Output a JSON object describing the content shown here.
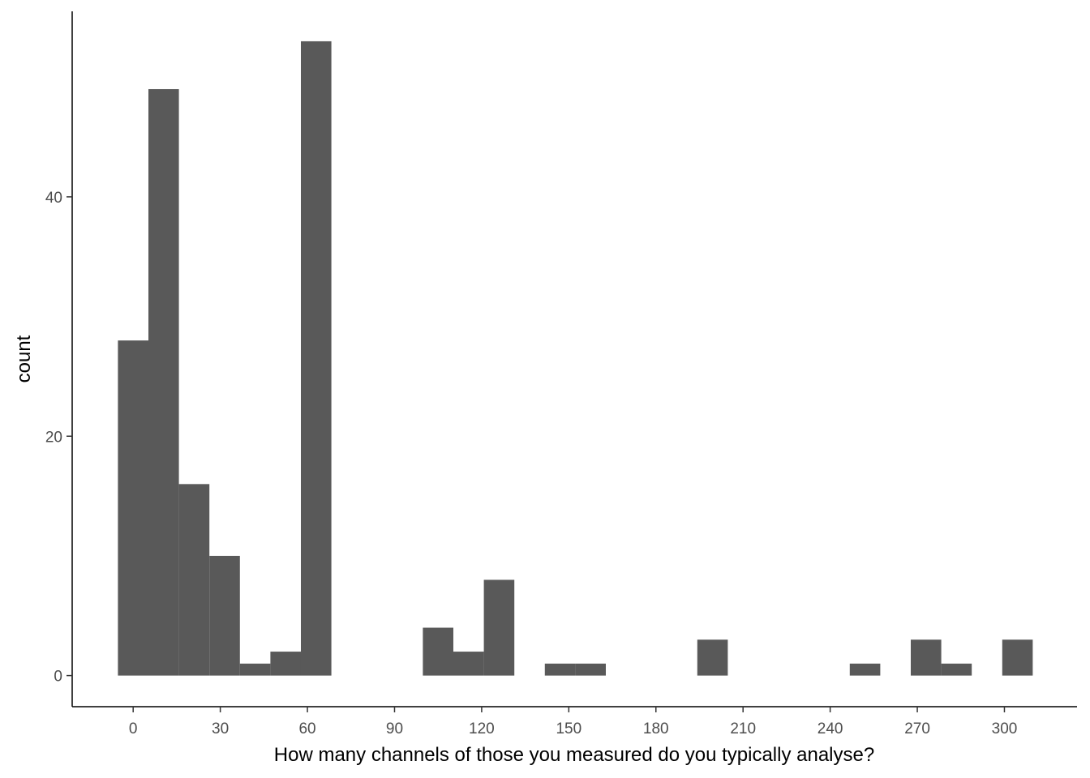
{
  "chart_data": {
    "type": "bar",
    "title": "",
    "xlabel": "How many channels of those you measured do you typically analyse?",
    "ylabel": "count",
    "bin_width": 10.5,
    "bins": [
      {
        "x0": -5.25,
        "x1": 5.25,
        "count": 28
      },
      {
        "x0": 5.25,
        "x1": 15.75,
        "count": 49
      },
      {
        "x0": 15.75,
        "x1": 26.25,
        "count": 16
      },
      {
        "x0": 26.25,
        "x1": 36.75,
        "count": 10
      },
      {
        "x0": 36.75,
        "x1": 47.25,
        "count": 1
      },
      {
        "x0": 47.25,
        "x1": 57.75,
        "count": 2
      },
      {
        "x0": 57.75,
        "x1": 68.25,
        "count": 53
      },
      {
        "x0": 99.75,
        "x1": 110.25,
        "count": 4
      },
      {
        "x0": 110.25,
        "x1": 120.75,
        "count": 2
      },
      {
        "x0": 120.75,
        "x1": 131.25,
        "count": 8
      },
      {
        "x0": 141.75,
        "x1": 152.25,
        "count": 1
      },
      {
        "x0": 152.25,
        "x1": 162.75,
        "count": 1
      },
      {
        "x0": 194.25,
        "x1": 204.75,
        "count": 3
      },
      {
        "x0": 246.75,
        "x1": 257.25,
        "count": 1
      },
      {
        "x0": 267.75,
        "x1": 278.25,
        "count": 3
      },
      {
        "x0": 278.25,
        "x1": 288.75,
        "count": 1
      },
      {
        "x0": 299.25,
        "x1": 309.75,
        "count": 3
      }
    ],
    "xlim": [
      -21,
      325
    ],
    "ylim": [
      -2.6,
      55.5
    ],
    "x_ticks": [
      0,
      30,
      60,
      90,
      120,
      150,
      180,
      210,
      240,
      270,
      300
    ],
    "y_ticks": [
      0,
      20,
      40
    ],
    "bar_color": "#595959",
    "axis_color": "#000000",
    "tick_label_color": "#4d4d4d",
    "grid": false,
    "legend": "none"
  }
}
